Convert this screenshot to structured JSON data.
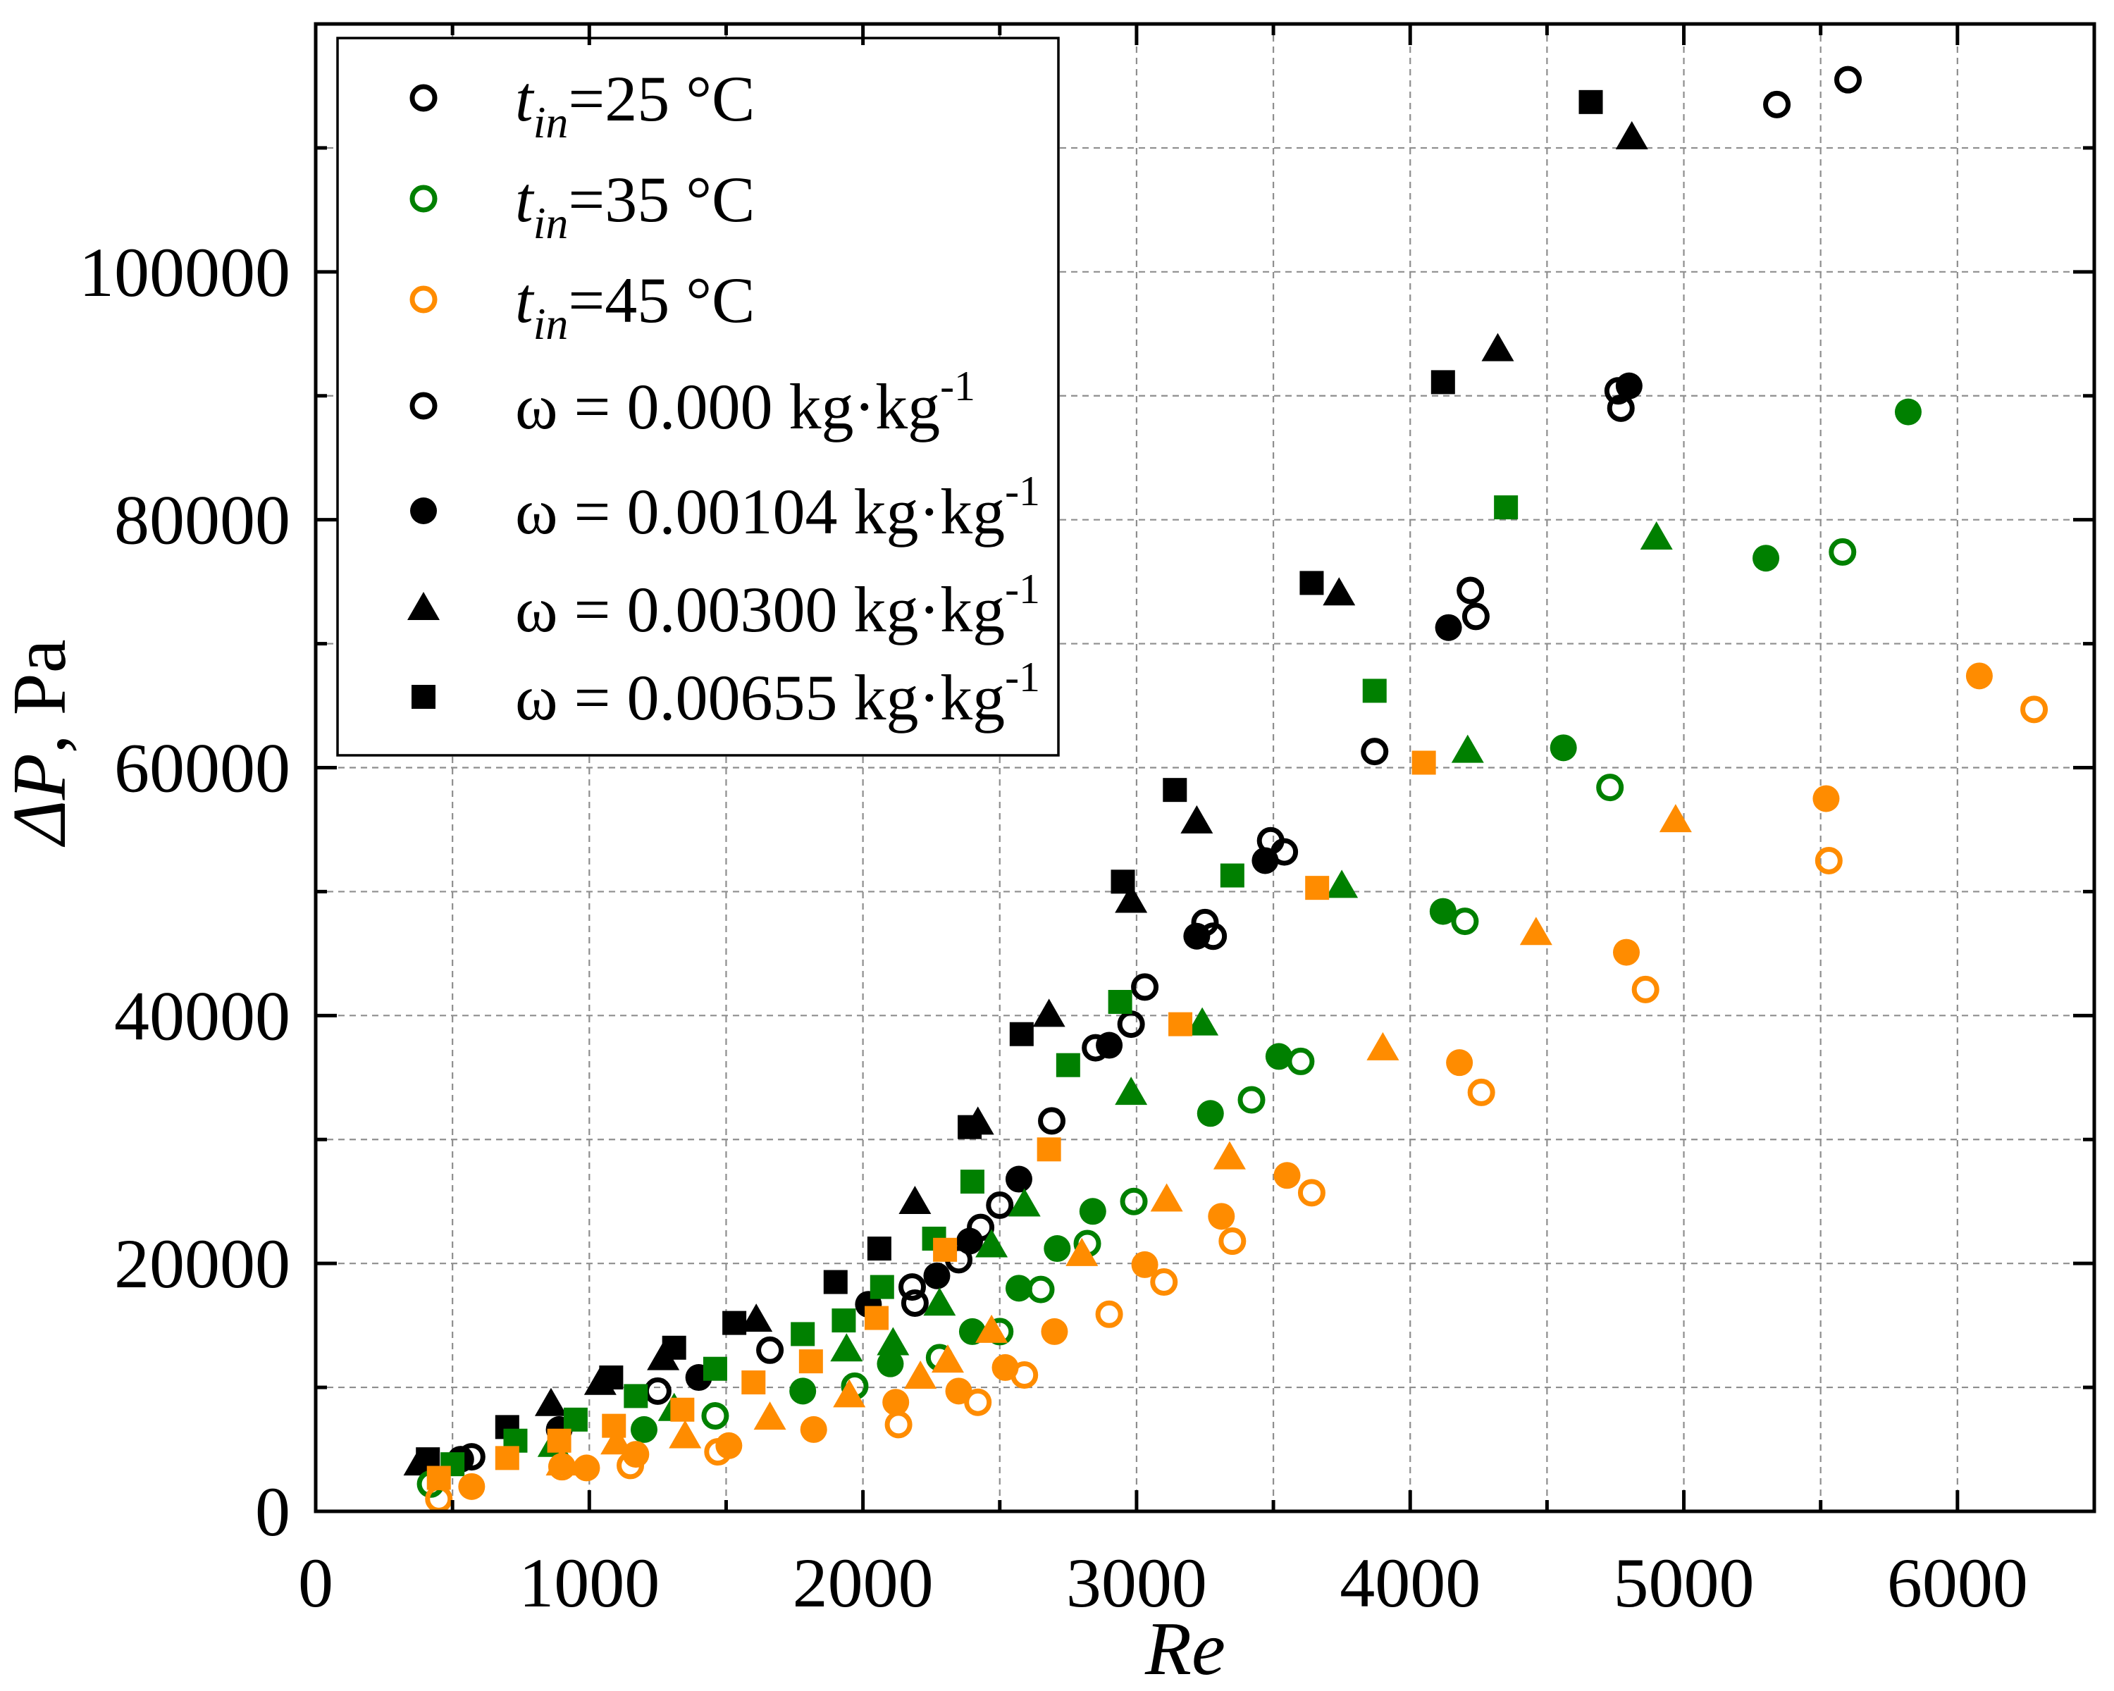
{
  "chart_data": {
    "type": "scatter",
    "xlabel": "Re",
    "ylabel": {
      "symbol": "ΔP",
      "rest": ", Pa"
    },
    "xlim": [
      0,
      6500
    ],
    "ylim": [
      0,
      120000
    ],
    "x_axis": {
      "ticks": [
        0,
        1000,
        2000,
        3000,
        4000,
        5000,
        6000
      ],
      "tick_labels": [
        "0",
        "1000",
        "2000",
        "3000",
        "4000",
        "5000",
        "6000"
      ],
      "minor_step": 500
    },
    "y_axis": {
      "ticks": [
        0,
        20000,
        40000,
        60000,
        80000,
        100000
      ],
      "tick_labels": [
        "0",
        "20000",
        "40000",
        "60000",
        "80000",
        "100000"
      ],
      "minor_step": 10000
    },
    "grid": true,
    "legend": {
      "position": "top-left",
      "entries": [
        {
          "symbol": "t",
          "subscript": "in",
          "text": "=25 °C",
          "color": "#000000",
          "marker": "open-circle"
        },
        {
          "symbol": "t",
          "subscript": "in",
          "text": "=35 °C",
          "color": "#008000",
          "marker": "open-circle"
        },
        {
          "symbol": "t",
          "subscript": "in",
          "text": "=45 °C",
          "color": "#ff8c00",
          "marker": "open-circle"
        },
        {
          "text": "ω = 0.000 kg·kg",
          "superscript": "-1",
          "color": "#000000",
          "marker": "open-circle"
        },
        {
          "text": "ω = 0.00104 kg·kg",
          "superscript": "-1",
          "color": "#000000",
          "marker": "filled-circle"
        },
        {
          "text": "ω = 0.00300 kg·kg",
          "superscript": "-1",
          "color": "#000000",
          "marker": "filled-triangle"
        },
        {
          "text": "ω = 0.00655 kg·kg",
          "superscript": "-1",
          "color": "#000000",
          "marker": "filled-square"
        }
      ]
    },
    "series": [
      {
        "t_in": 25,
        "omega": 0.0,
        "color": "#000000",
        "marker": "open-circle",
        "points": [
          [
            570,
            4400
          ],
          [
            1250,
            9700
          ],
          [
            1660,
            13000
          ],
          [
            2180,
            18100
          ],
          [
            2190,
            16800
          ],
          [
            2350,
            20300
          ],
          [
            2430,
            22900
          ],
          [
            2500,
            24700
          ],
          [
            2690,
            31500
          ],
          [
            2850,
            37400
          ],
          [
            2980,
            39300
          ],
          [
            3030,
            42300
          ],
          [
            3250,
            47500
          ],
          [
            3280,
            46400
          ],
          [
            3490,
            54100
          ],
          [
            3540,
            53200
          ],
          [
            3870,
            61300
          ],
          [
            4220,
            74300
          ],
          [
            4240,
            72200
          ],
          [
            4760,
            90400
          ],
          [
            4770,
            89000
          ],
          [
            5340,
            113500
          ],
          [
            5600,
            115500
          ]
        ]
      },
      {
        "t_in": 25,
        "omega": 0.00104,
        "color": "#000000",
        "marker": "filled-circle",
        "points": [
          [
            530,
            4200
          ],
          [
            890,
            6600
          ],
          [
            1400,
            10800
          ],
          [
            2020,
            16700
          ],
          [
            2270,
            19000
          ],
          [
            2390,
            21800
          ],
          [
            2570,
            26800
          ],
          [
            2900,
            37600
          ],
          [
            3220,
            46400
          ],
          [
            3470,
            52500
          ],
          [
            4140,
            71300
          ],
          [
            4800,
            90800
          ]
        ]
      },
      {
        "t_in": 25,
        "omega": 0.003,
        "color": "#000000",
        "marker": "filled-triangle",
        "points": [
          [
            380,
            3800
          ],
          [
            860,
            8600
          ],
          [
            1040,
            10300
          ],
          [
            1270,
            12300
          ],
          [
            1610,
            15400
          ],
          [
            2190,
            24900
          ],
          [
            2420,
            31300
          ],
          [
            2680,
            40000
          ],
          [
            2980,
            49200
          ],
          [
            3220,
            55600
          ],
          [
            3740,
            74000
          ],
          [
            4320,
            93700
          ],
          [
            4810,
            110800
          ]
        ]
      },
      {
        "t_in": 25,
        "omega": 0.00655,
        "color": "#000000",
        "marker": "filled-square",
        "points": [
          [
            410,
            4200
          ],
          [
            700,
            6800
          ],
          [
            1080,
            10800
          ],
          [
            1310,
            13200
          ],
          [
            1530,
            15200
          ],
          [
            1900,
            18500
          ],
          [
            2060,
            21200
          ],
          [
            2390,
            31000
          ],
          [
            2580,
            38500
          ],
          [
            2950,
            50800
          ],
          [
            3140,
            58200
          ],
          [
            3640,
            74900
          ],
          [
            4120,
            91100
          ],
          [
            4660,
            113700
          ]
        ]
      },
      {
        "t_in": 35,
        "omega": 0.0,
        "color": "#008000",
        "marker": "open-circle",
        "points": [
          [
            420,
            2200
          ],
          [
            1460,
            7700
          ],
          [
            1970,
            10100
          ],
          [
            2280,
            12400
          ],
          [
            2500,
            14500
          ],
          [
            2650,
            17900
          ],
          [
            2820,
            21600
          ],
          [
            2990,
            25000
          ],
          [
            3420,
            33200
          ],
          [
            3600,
            36300
          ],
          [
            4200,
            47600
          ],
          [
            4730,
            58400
          ],
          [
            5580,
            77400
          ]
        ]
      },
      {
        "t_in": 35,
        "omega": 0.00104,
        "color": "#008000",
        "marker": "filled-circle",
        "points": [
          [
            1200,
            6600
          ],
          [
            1780,
            9700
          ],
          [
            2100,
            11900
          ],
          [
            2400,
            14500
          ],
          [
            2570,
            18000
          ],
          [
            2710,
            21200
          ],
          [
            2840,
            24200
          ],
          [
            3270,
            32100
          ],
          [
            3520,
            36700
          ],
          [
            4120,
            48400
          ],
          [
            4560,
            61600
          ],
          [
            5300,
            76900
          ],
          [
            5820,
            88700
          ]
        ]
      },
      {
        "t_in": 35,
        "omega": 0.003,
        "color": "#008000",
        "marker": "filled-triangle",
        "points": [
          [
            870,
            5300
          ],
          [
            1310,
            8200
          ],
          [
            1940,
            13000
          ],
          [
            2110,
            13500
          ],
          [
            2280,
            16700
          ],
          [
            2470,
            21400
          ],
          [
            2590,
            24700
          ],
          [
            2980,
            33700
          ],
          [
            3240,
            39300
          ],
          [
            3750,
            50400
          ],
          [
            4210,
            61300
          ],
          [
            4900,
            78500
          ]
        ]
      },
      {
        "t_in": 35,
        "omega": 0.00655,
        "color": "#008000",
        "marker": "filled-square",
        "points": [
          [
            500,
            3800
          ],
          [
            730,
            5700
          ],
          [
            950,
            7400
          ],
          [
            1170,
            9300
          ],
          [
            1460,
            11500
          ],
          [
            1780,
            14300
          ],
          [
            1930,
            15400
          ],
          [
            2070,
            18100
          ],
          [
            2260,
            22000
          ],
          [
            2400,
            26600
          ],
          [
            2750,
            36000
          ],
          [
            2940,
            41100
          ],
          [
            3350,
            51300
          ],
          [
            3870,
            66200
          ],
          [
            4350,
            81000
          ]
        ]
      },
      {
        "t_in": 45,
        "omega": 0.0,
        "color": "#ff8c00",
        "marker": "open-circle",
        "points": [
          [
            450,
            1000
          ],
          [
            900,
            3600
          ],
          [
            1150,
            3700
          ],
          [
            1470,
            4800
          ],
          [
            2130,
            7000
          ],
          [
            2420,
            8800
          ],
          [
            2590,
            11000
          ],
          [
            2900,
            15900
          ],
          [
            3100,
            18500
          ],
          [
            3350,
            21800
          ],
          [
            3640,
            25700
          ],
          [
            4260,
            33800
          ],
          [
            4860,
            42100
          ],
          [
            5530,
            52500
          ],
          [
            6280,
            64700
          ]
        ]
      },
      {
        "t_in": 45,
        "omega": 0.00104,
        "color": "#ff8c00",
        "marker": "filled-circle",
        "points": [
          [
            570,
            2000
          ],
          [
            990,
            3500
          ],
          [
            1170,
            4600
          ],
          [
            1510,
            5300
          ],
          [
            1820,
            6600
          ],
          [
            2120,
            8800
          ],
          [
            2350,
            9700
          ],
          [
            2520,
            11600
          ],
          [
            2700,
            14500
          ],
          [
            3030,
            19900
          ],
          [
            3310,
            23800
          ],
          [
            3550,
            27100
          ],
          [
            4180,
            36200
          ],
          [
            4790,
            45100
          ],
          [
            5520,
            57500
          ],
          [
            6080,
            67400
          ]
        ]
      },
      {
        "t_in": 45,
        "omega": 0.003,
        "color": "#ff8c00",
        "marker": "filled-triangle",
        "points": [
          [
            900,
            3800
          ],
          [
            1100,
            5500
          ],
          [
            1350,
            6000
          ],
          [
            1660,
            7500
          ],
          [
            1950,
            9300
          ],
          [
            2210,
            10800
          ],
          [
            2310,
            12100
          ],
          [
            2470,
            14500
          ],
          [
            2800,
            20700
          ],
          [
            3110,
            25100
          ],
          [
            3340,
            28500
          ],
          [
            3900,
            37300
          ],
          [
            4460,
            46600
          ],
          [
            4970,
            55700
          ]
        ]
      },
      {
        "t_in": 45,
        "omega": 0.00655,
        "color": "#ff8c00",
        "marker": "filled-square",
        "points": [
          [
            450,
            2700
          ],
          [
            700,
            4300
          ],
          [
            890,
            5700
          ],
          [
            1090,
            6900
          ],
          [
            1340,
            8200
          ],
          [
            1600,
            10400
          ],
          [
            1810,
            12100
          ],
          [
            2050,
            15600
          ],
          [
            2300,
            21100
          ],
          [
            2680,
            29200
          ],
          [
            3160,
            39300
          ],
          [
            3660,
            50300
          ],
          [
            4050,
            60400
          ]
        ]
      }
    ]
  }
}
